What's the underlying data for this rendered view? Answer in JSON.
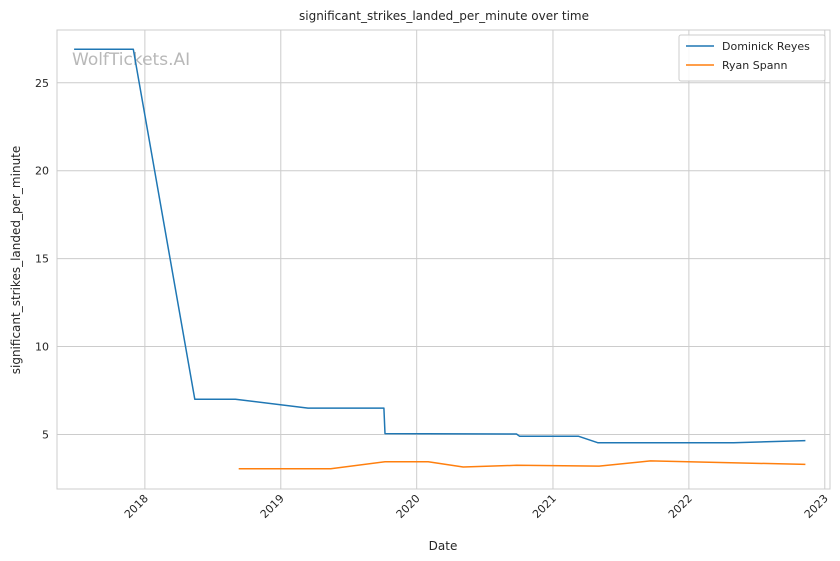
{
  "chart_data": {
    "type": "line",
    "title": "significant_strikes_landed_per_minute over time",
    "xlabel": "Date",
    "ylabel": "significant_strikes_landed_per_minute",
    "watermark": "WolfTickets.AI",
    "grid": true,
    "legend_position": "top-right",
    "xlim": [
      "2017-05-10",
      "2023-01-15"
    ],
    "ylim": [
      1.9,
      28.0
    ],
    "x_ticks": [
      "2018-01-01",
      "2019-01-01",
      "2020-01-01",
      "2021-01-01",
      "2022-01-01",
      "2023-01-01"
    ],
    "x_tick_labels": [
      "2018",
      "2019",
      "2020",
      "2021",
      "2022",
      "2023"
    ],
    "y_ticks": [
      5,
      10,
      15,
      20,
      25
    ],
    "y_tick_labels": [
      "5",
      "10",
      "15",
      "20",
      "25"
    ],
    "series": [
      {
        "name": "Dominick Reyes",
        "color": "#1f77b4",
        "points": [
          [
            "2017-06-25",
            26.9
          ],
          [
            "2017-12-01",
            26.9
          ],
          [
            "2018-05-15",
            7.0
          ],
          [
            "2018-09-01",
            7.0
          ],
          [
            "2019-03-15",
            6.5
          ],
          [
            "2019-10-05",
            6.5
          ],
          [
            "2019-10-08",
            5.05
          ],
          [
            "2020-09-25",
            5.03
          ],
          [
            "2020-10-03",
            4.9
          ],
          [
            "2021-03-10",
            4.9
          ],
          [
            "2021-05-01",
            4.53
          ],
          [
            "2022-05-01",
            4.53
          ],
          [
            "2022-11-10",
            4.65
          ]
        ]
      },
      {
        "name": "Ryan Spann",
        "color": "#ff7f0e",
        "points": [
          [
            "2018-09-10",
            3.05
          ],
          [
            "2019-05-15",
            3.05
          ],
          [
            "2019-10-08",
            3.45
          ],
          [
            "2020-02-01",
            3.45
          ],
          [
            "2020-05-05",
            3.15
          ],
          [
            "2020-09-25",
            3.25
          ],
          [
            "2021-05-05",
            3.2
          ],
          [
            "2021-09-20",
            3.5
          ],
          [
            "2022-11-10",
            3.3
          ]
        ]
      }
    ]
  }
}
